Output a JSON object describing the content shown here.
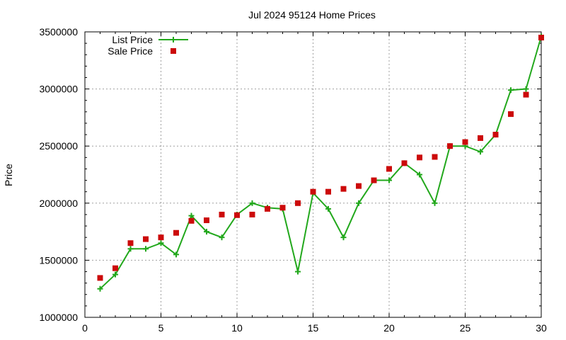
{
  "chart_data": {
    "type": "line",
    "title": "Jul 2024 95124 Home Prices",
    "xlabel": "",
    "ylabel": "Price",
    "xlim": [
      0,
      30
    ],
    "ylim": [
      1000000,
      3500000
    ],
    "xticks": [
      0,
      5,
      10,
      15,
      20,
      25,
      30
    ],
    "yticks": [
      1000000,
      1500000,
      2000000,
      2500000,
      3000000,
      3500000
    ],
    "grid": true,
    "legend_position": "top-left",
    "series": [
      {
        "name": "List Price",
        "style": "line-with-plus-markers",
        "color": "#22a81c",
        "x": [
          1,
          2,
          3,
          4,
          5,
          6,
          7,
          8,
          9,
          10,
          11,
          12,
          13,
          14,
          15,
          16,
          17,
          18,
          19,
          20,
          21,
          22,
          23,
          24,
          25,
          26,
          27,
          28,
          29,
          30
        ],
        "y": [
          1250000,
          1375000,
          1600000,
          1600000,
          1650000,
          1550000,
          1890000,
          1750000,
          1700000,
          1900000,
          2000000,
          1960000,
          1950000,
          1400000,
          2090000,
          1950000,
          1700000,
          2000000,
          2200000,
          2200000,
          2350000,
          2250000,
          2000000,
          2500000,
          2500000,
          2450000,
          2600000,
          2990000,
          3000000,
          3460000
        ]
      },
      {
        "name": "Sale Price",
        "style": "square-markers",
        "color": "#cc0a0a",
        "x": [
          1,
          2,
          3,
          4,
          5,
          6,
          7,
          8,
          9,
          10,
          11,
          12,
          13,
          14,
          15,
          16,
          17,
          18,
          19,
          20,
          21,
          22,
          23,
          24,
          25,
          26,
          27,
          28,
          29,
          30
        ],
        "y": [
          1345000,
          1430000,
          1650000,
          1685000,
          1700000,
          1740000,
          1845000,
          1850000,
          1900000,
          1895000,
          1900000,
          1950000,
          1960000,
          2000000,
          2100000,
          2100000,
          2125000,
          2150000,
          2200000,
          2300000,
          2350000,
          2400000,
          2405000,
          2500000,
          2535000,
          2570000,
          2600000,
          2780000,
          2950000,
          3450000
        ]
      }
    ]
  }
}
